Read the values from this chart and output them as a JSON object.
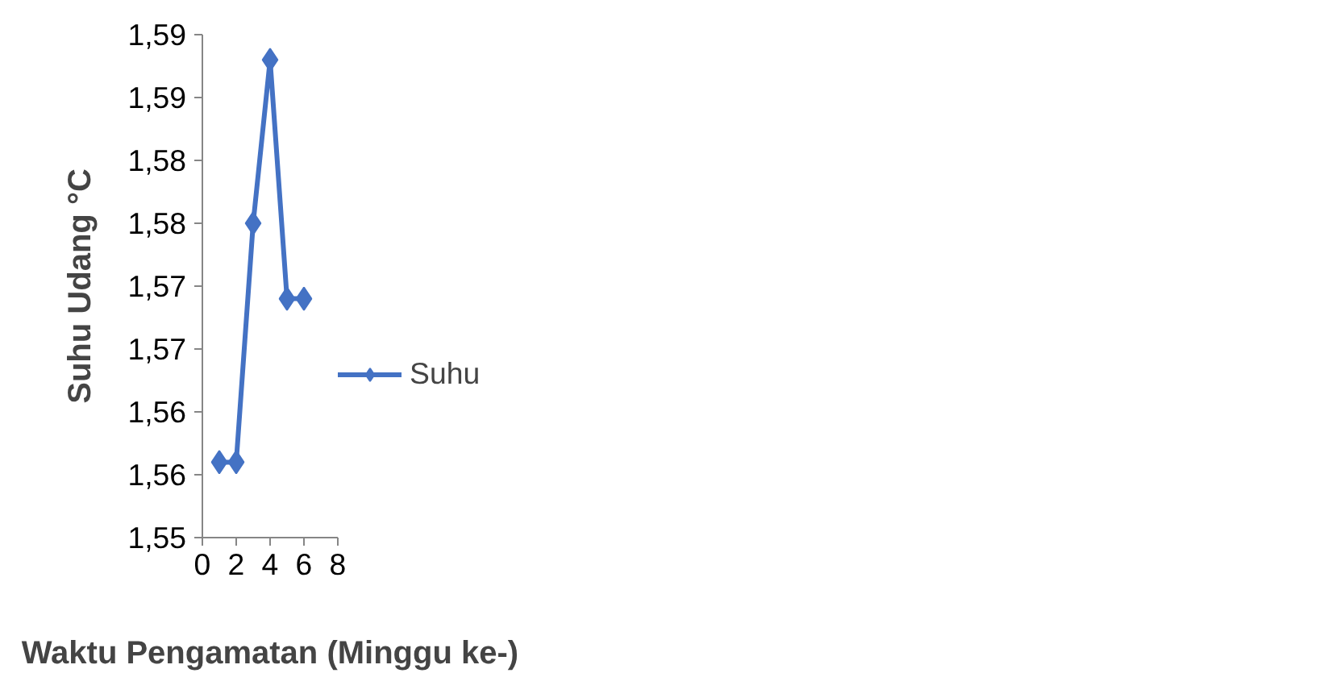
{
  "chart_data": {
    "type": "line",
    "xlabel": "Waktu Pengamatan (Minggu ke-)",
    "ylabel": "Suhu Udang °C",
    "x": [
      1,
      2,
      3,
      4,
      5,
      6
    ],
    "series": [
      {
        "name": "Suhu",
        "color": "#4472c4",
        "values": [
          1.556,
          1.556,
          1.575,
          1.588,
          1.569,
          1.569
        ]
      }
    ],
    "xlim": [
      0,
      8
    ],
    "xticks": [
      0,
      2,
      4,
      6,
      8
    ],
    "ylim": [
      1.55,
      1.59
    ],
    "yticks": [
      {
        "value": 1.55,
        "label": "1,55"
      },
      {
        "value": 1.555,
        "label": "1,56"
      },
      {
        "value": 1.56,
        "label": "1,56"
      },
      {
        "value": 1.565,
        "label": "1,57"
      },
      {
        "value": 1.57,
        "label": "1,57"
      },
      {
        "value": 1.575,
        "label": "1,58"
      },
      {
        "value": 1.58,
        "label": "1,58"
      },
      {
        "value": 1.585,
        "label": "1,59"
      },
      {
        "value": 1.59,
        "label": "1,59"
      }
    ],
    "grid": false,
    "legend": "right",
    "marker": "diamond",
    "line_style": "solid"
  }
}
